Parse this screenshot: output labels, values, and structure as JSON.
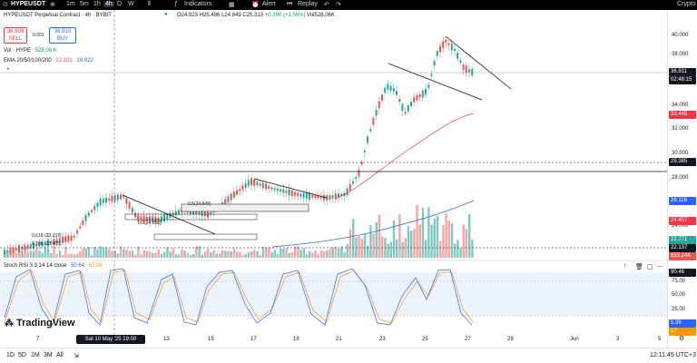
{
  "topbar": {
    "symbol": "HYPEUSDT",
    "timeframes": [
      "1m",
      "5m",
      "1h",
      "4h",
      "D",
      "W"
    ],
    "indicators_label": "Indicators",
    "alert_label": "Alert",
    "replay_label": "Replay",
    "right_label": "Crypto"
  },
  "legend": {
    "title": "HYPEUSDT Perpetual Contract · 4h · BYBIT",
    "open": "O24.923",
    "high": "H25.486",
    "low": "L24.849",
    "close": "C25.313",
    "change": "+0.390 (+1.56%)",
    "volume": "Vol528.06K"
  },
  "trade": {
    "sell_price": "36.909",
    "sell_label": "SELL",
    "spread": "0.001",
    "buy_price": "36.910",
    "buy_label": "BUY"
  },
  "volume_label": "Vol · HYPE",
  "volume_value": "528.06 K",
  "ema_label": "EMA 20/50/100/200",
  "ema_values": [
    "22.101",
    "18.922"
  ],
  "stoch_label": "Stoch RSI 3 3 14 14 close",
  "stoch_values": [
    "50.64",
    "57.09"
  ],
  "brand": "TradingView",
  "fib_labels": [
    "0.618 (23.137)",
    "0.786 (23.405)",
    "0.5(24.058)",
    "0.5(24.649)"
  ],
  "price_axis": {
    "ticks": [
      "40.000",
      "38.000",
      "34.000",
      "32.000",
      "30.000",
      "28.000",
      "24.000"
    ],
    "current_price": "36.911",
    "countdown": "02:48:15",
    "ema_tag_red": "33.445",
    "level_tag": "29.385",
    "ema_tag_blue": "26.116",
    "tag_red2": "24.457",
    "tag_teal": "22.771",
    "tag_dark": "22.137",
    "volume_tag": "653.24K",
    "stoch_ticks": [
      "75.00",
      "50.00",
      "25.00"
    ],
    "stoch_tag1": "90.46",
    "stoch_tag2": "5.39",
    "stoch_tag3": "17"
  },
  "time_axis": {
    "ticks": [
      "7",
      "9",
      "13",
      "15",
      "17",
      "19",
      "21",
      "23",
      "25",
      "27",
      "29",
      "Jun",
      "3",
      "5"
    ],
    "crosshair": "Sat 10 May '25   19:00"
  },
  "bottombar": {
    "ranges": [
      "1D",
      "5D",
      "1M",
      "3M",
      "All"
    ],
    "clock": "12:11:45 UTC+3"
  },
  "colors": {
    "up": "#26a69a",
    "down": "#ef5350",
    "ema_red": "#f23645",
    "ema_blue": "#2962ff",
    "stoch_k": "#2962ff",
    "stoch_d": "#ff9800"
  }
}
